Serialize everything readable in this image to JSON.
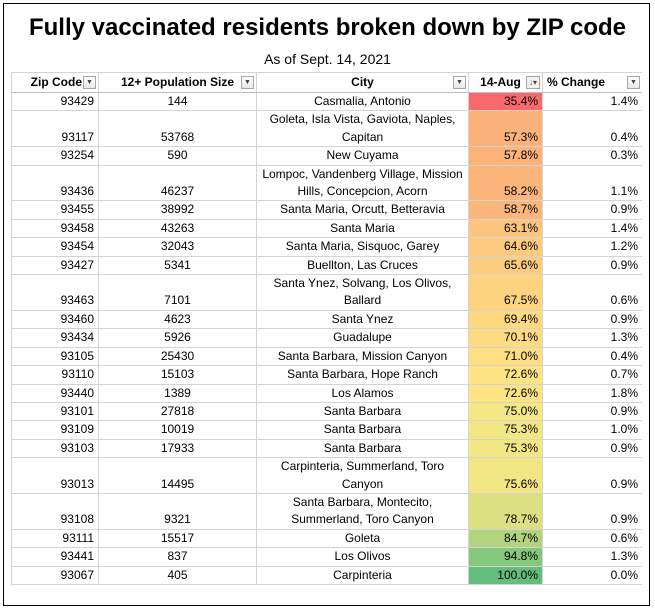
{
  "title": "Fully vaccinated residents broken down by ZIP code",
  "subtitle": "As of Sept. 14, 2021",
  "headers": {
    "zip": "Zip Code",
    "pop": "12+ Population Size",
    "city": "City",
    "rate": "14-Aug",
    "change": "% Change"
  },
  "rows": [
    {
      "zip": "93429",
      "pop": "144",
      "city": "Casmalia, Antonio",
      "rate": "35.4%",
      "change": "1.4%",
      "color": "#f8696b",
      "lines": 1
    },
    {
      "zip": "93117",
      "pop": "53768",
      "city": "Goleta, Isla Vista, Gaviota, Naples, Capitan",
      "rate": "57.3%",
      "change": "0.4%",
      "color": "#fbb27a",
      "lines": 2
    },
    {
      "zip": "93254",
      "pop": "590",
      "city": "New Cuyama",
      "rate": "57.8%",
      "change": "0.3%",
      "color": "#fbb37a",
      "lines": 1
    },
    {
      "zip": "93436",
      "pop": "46237",
      "city": "Lompoc, Vandenberg Village, Mission Hills, Concepcion, Acorn",
      "rate": "58.2%",
      "change": "1.1%",
      "color": "#fbb57b",
      "lines": 2
    },
    {
      "zip": "93455",
      "pop": "38992",
      "city": "Santa Maria, Orcutt, Betteravia",
      "rate": "58.7%",
      "change": "0.9%",
      "color": "#fbb67b",
      "lines": 1
    },
    {
      "zip": "93458",
      "pop": "43263",
      "city": "Santa Maria",
      "rate": "63.1%",
      "change": "1.4%",
      "color": "#fcc47d",
      "lines": 1
    },
    {
      "zip": "93454",
      "pop": "32043",
      "city": "Santa Maria, Sisquoc, Garey",
      "rate": "64.6%",
      "change": "1.2%",
      "color": "#fcc97e",
      "lines": 1
    },
    {
      "zip": "93427",
      "pop": "5341",
      "city": "Buellton, Las Cruces",
      "rate": "65.6%",
      "change": "0.9%",
      "color": "#fdcc7e",
      "lines": 1
    },
    {
      "zip": "93463",
      "pop": "7101",
      "city": "Santa Ynez, Solvang, Los Olivos, Ballard",
      "rate": "67.5%",
      "change": "0.6%",
      "color": "#fdd37f",
      "lines": 2
    },
    {
      "zip": "93460",
      "pop": "4623",
      "city": "Santa Ynez",
      "rate": "69.4%",
      "change": "0.9%",
      "color": "#fed980",
      "lines": 1
    },
    {
      "zip": "93434",
      "pop": "5926",
      "city": "Guadalupe",
      "rate": "70.1%",
      "change": "1.3%",
      "color": "#fedb81",
      "lines": 1
    },
    {
      "zip": "93105",
      "pop": "25430",
      "city": "Santa Barbara, Mission Canyon",
      "rate": "71.0%",
      "change": "0.4%",
      "color": "#fede81",
      "lines": 1
    },
    {
      "zip": "93110",
      "pop": "15103",
      "city": "Santa Barbara, Hope Ranch",
      "rate": "72.6%",
      "change": "0.7%",
      "color": "#fee382",
      "lines": 1
    },
    {
      "zip": "93440",
      "pop": "1389",
      "city": "Los Alamos",
      "rate": "72.6%",
      "change": "1.8%",
      "color": "#fee382",
      "lines": 1
    },
    {
      "zip": "93101",
      "pop": "27818",
      "city": "Santa Barbara",
      "rate": "75.0%",
      "change": "0.9%",
      "color": "#f5e783",
      "lines": 1
    },
    {
      "zip": "93109",
      "pop": "10019",
      "city": "Santa Barbara",
      "rate": "75.3%",
      "change": "1.0%",
      "color": "#f3e783",
      "lines": 1
    },
    {
      "zip": "93103",
      "pop": "17933",
      "city": "Santa Barbara",
      "rate": "75.3%",
      "change": "0.9%",
      "color": "#f3e783",
      "lines": 1
    },
    {
      "zip": "93013",
      "pop": "14495",
      "city": "Carpinteria, Summerland, Toro Canyon",
      "rate": "75.6%",
      "change": "0.9%",
      "color": "#f1e683",
      "lines": 2
    },
    {
      "zip": "93108",
      "pop": "9321",
      "city": "Santa Barbara, Montecito, Summerland, Toro Canyon",
      "rate": "78.7%",
      "change": "0.9%",
      "color": "#dce081",
      "lines": 2
    },
    {
      "zip": "93111",
      "pop": "15517",
      "city": "Goleta",
      "rate": "84.7%",
      "change": "0.6%",
      "color": "#b2d47f",
      "lines": 1
    },
    {
      "zip": "93441",
      "pop": "837",
      "city": "Los Olivos",
      "rate": "94.8%",
      "change": "1.3%",
      "color": "#85c77b",
      "lines": 1
    },
    {
      "zip": "93067",
      "pop": "405",
      "city": "Carpinteria",
      "rate": "100.0%",
      "change": "0.0%",
      "color": "#63be7b",
      "lines": 1
    }
  ]
}
